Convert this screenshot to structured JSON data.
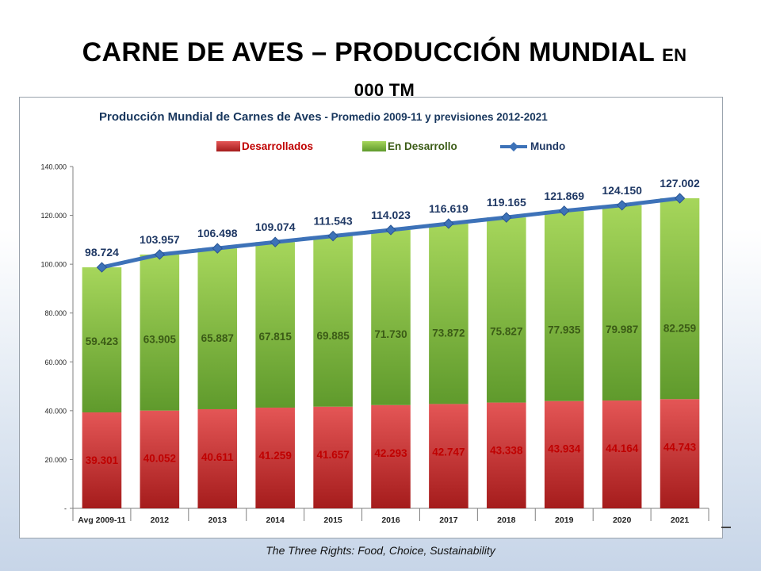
{
  "slide": {
    "title_main": "CARNE DE AVES – PRODUCCIÓN MUNDIAL",
    "title_small": "EN",
    "title_line2": "000 TM",
    "footer": "The Three Rights: Food, Choice, Sustainability"
  },
  "colors": {
    "developed": "#d64545",
    "developing": "#8fc444",
    "world": "#3d72b8",
    "label_world": "#1f3864",
    "label_developed": "#c00000",
    "label_developing": "#3b5b16"
  },
  "chart_data": {
    "type": "bar",
    "stacked": true,
    "title_bold": "Producción Mundial de Carnes de Aves",
    "title_rest": " - Promedio  2009-11 y previsiones  2012-2021",
    "categories": [
      "Avg 2009-11",
      "2012",
      "2013",
      "2014",
      "2015",
      "2016",
      "2017",
      "2018",
      "2019",
      "2020",
      "2021"
    ],
    "series": [
      {
        "name": "Desarrollados",
        "values": [
          39301,
          40052,
          40611,
          41259,
          41657,
          42293,
          42747,
          43338,
          43934,
          44164,
          44743
        ]
      },
      {
        "name": "En Desarrollo",
        "values": [
          59423,
          63905,
          65887,
          67815,
          69885,
          71730,
          73872,
          75827,
          77935,
          79987,
          82259
        ]
      },
      {
        "name": "Mundo",
        "type": "line",
        "values": [
          98724,
          103957,
          106498,
          109074,
          111543,
          114023,
          116619,
          119165,
          121869,
          124150,
          127002
        ]
      }
    ],
    "labels": {
      "Desarrollados": [
        "39.301",
        "40.052",
        "40.611",
        "41.259",
        "41.657",
        "42.293",
        "42.747",
        "43.338",
        "43.934",
        "44.164",
        "44.743"
      ],
      "En Desarrollo": [
        "59.423",
        "63.905",
        "65.887",
        "67.815",
        "69.885",
        "71.730",
        "73.872",
        "75.827",
        "77.935",
        "79.987",
        "82.259"
      ],
      "Mundo": [
        "98.724",
        "103.957",
        "106.498",
        "109.074",
        "111.543",
        "114.023",
        "116.619",
        "119.165",
        "121.869",
        "124.150",
        "127.002"
      ]
    },
    "ylim": [
      0,
      140000
    ],
    "yticks": [
      0,
      20000,
      40000,
      60000,
      80000,
      100000,
      120000,
      140000
    ],
    "ytick_labels": [
      "-",
      "20.000",
      "40.000",
      "60.000",
      "80.000",
      "100.000",
      "120.000",
      "140.000"
    ],
    "legend": [
      "Desarrollados",
      "En Desarrollo",
      "Mundo"
    ],
    "legend_position": "top",
    "grid": false
  }
}
